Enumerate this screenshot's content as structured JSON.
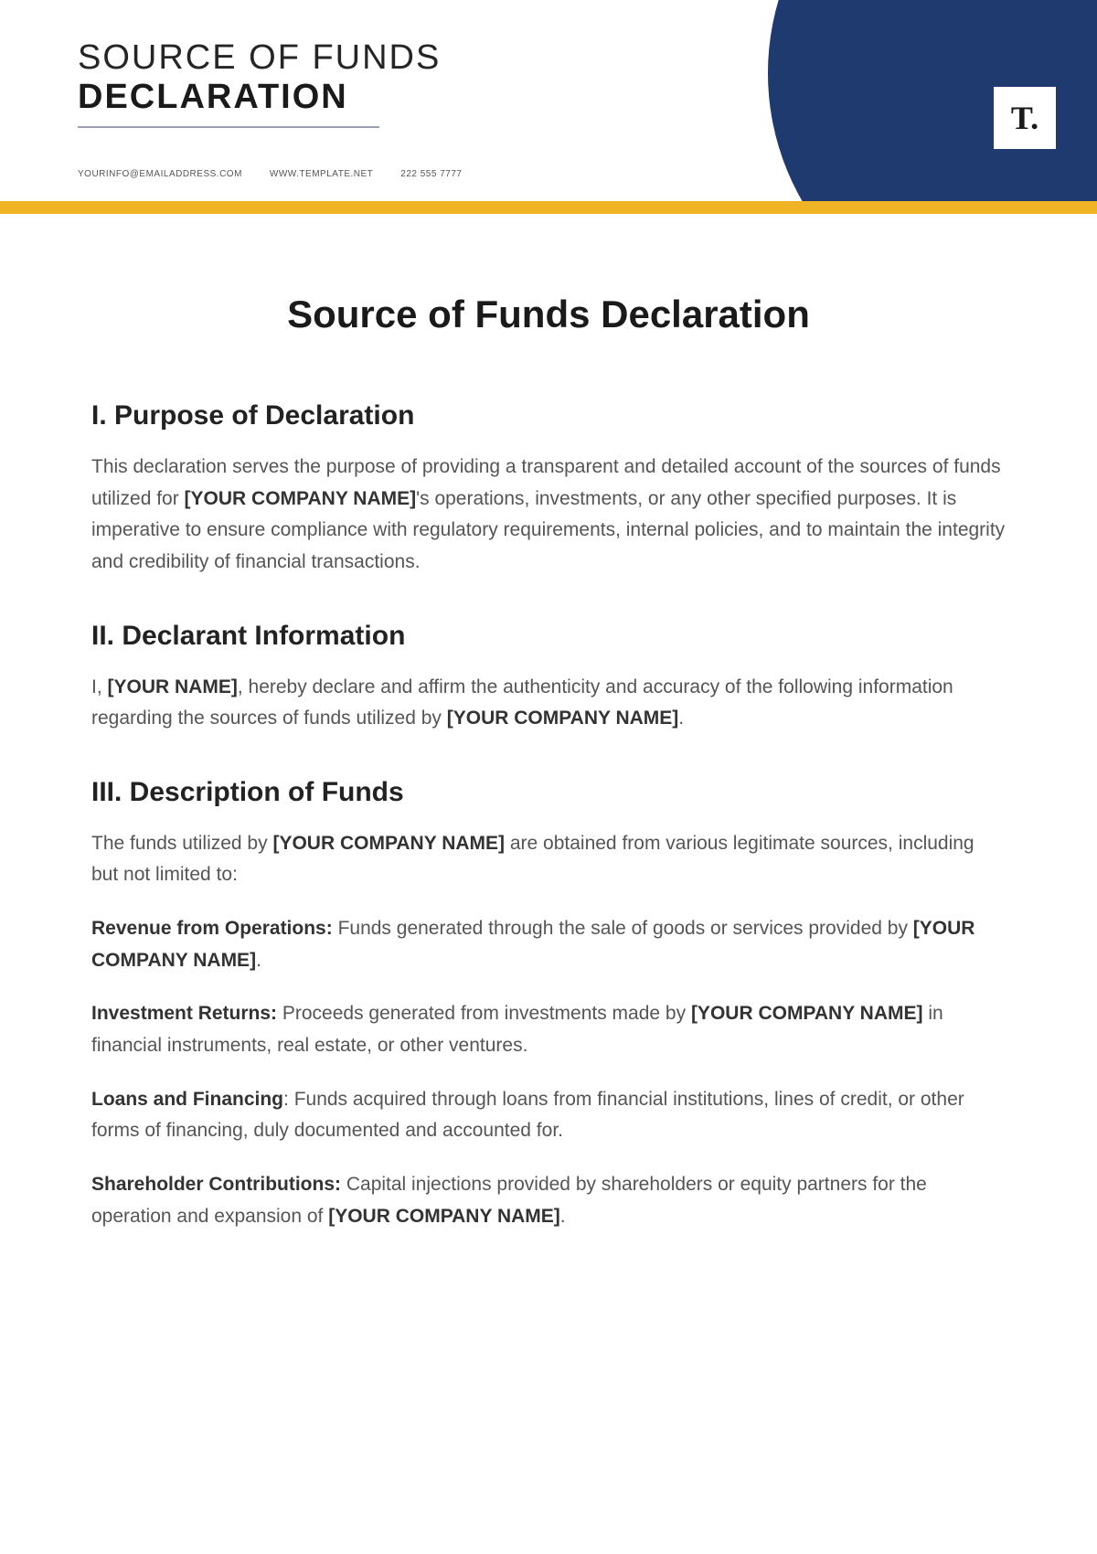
{
  "colors": {
    "accent_yellow": "#f0b323",
    "accent_navy": "#1e3a6e",
    "text_body": "#555555",
    "text_heading": "#1a1a1a",
    "underline": "#9aa0b0",
    "background": "#ffffff"
  },
  "header": {
    "title_line1": "SOURCE OF FUNDS",
    "title_line2": "DECLARATION",
    "contacts": {
      "email": "YOURINFO@EMAILADDRESS.COM",
      "website": "WWW.TEMPLATE.NET",
      "phone": "222 555 7777"
    },
    "logo_text": "T."
  },
  "document": {
    "main_title": "Source of Funds Declaration",
    "placeholders": {
      "company": "[YOUR COMPANY NAME]",
      "name": "[YOUR NAME]"
    },
    "sections": {
      "s1": {
        "heading": "I. Purpose of Declaration",
        "p1a": "This declaration serves the purpose of providing a transparent and detailed account of the sources of funds utilized for ",
        "p1b": "'s operations, investments, or any other specified purposes. It is imperative to ensure compliance with regulatory requirements, internal policies, and to maintain the integrity and credibility of financial transactions."
      },
      "s2": {
        "heading": "II. Declarant Information",
        "p1a": "I, ",
        "p1b": ", hereby declare and affirm the authenticity and accuracy of the following information regarding the sources of funds utilized by ",
        "p1c": "."
      },
      "s3": {
        "heading": "III. Description of Funds",
        "intro_a": "The funds utilized by ",
        "intro_b": " are obtained from various legitimate sources, including but not limited to:",
        "items": {
          "i1": {
            "lead": "Revenue from Operations: ",
            "text_a": "Funds generated through the sale of goods or services provided by ",
            "text_b": "."
          },
          "i2": {
            "lead": "Investment Returns: ",
            "text_a": "Proceeds generated from investments made by ",
            "text_b": " in financial instruments, real estate, or other ventures."
          },
          "i3": {
            "lead": "Loans and Financing",
            "colon": ": ",
            "text": "Funds acquired through loans from financial institutions, lines of credit, or other forms of financing, duly documented and accounted for."
          },
          "i4": {
            "lead": "Shareholder Contributions: ",
            "text_a": "Capital injections provided by shareholders or equity partners for the operation and expansion of ",
            "text_b": "."
          }
        }
      }
    }
  }
}
